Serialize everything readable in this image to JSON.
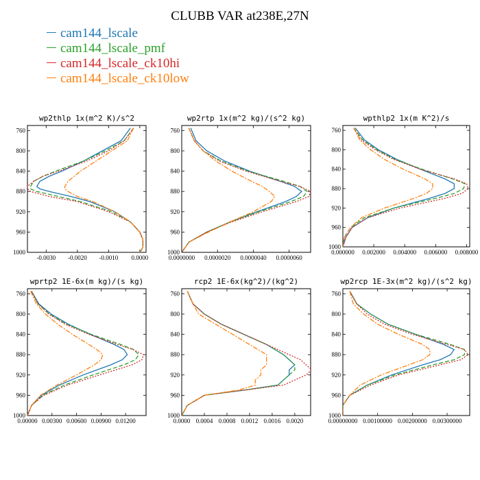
{
  "figure": {
    "title": "CLUBB VAR at238E,27N",
    "colors": {
      "cam144_lscale": "#1f77b4",
      "cam144_lscale_pmf": "#2ca02c",
      "cam144_lscale_ck10hi": "#d62728",
      "cam144_lscale_ck10low": "#ff7f0e"
    }
  },
  "legend": [
    {
      "label": "cam144_lscale",
      "color": "#1f77b4"
    },
    {
      "label": "cam144_lscale_pmf",
      "color": "#2ca02c"
    },
    {
      "label": "cam144_lscale_ck10hi",
      "color": "#d62728"
    },
    {
      "label": "cam144_lscale_ck10low",
      "color": "#ff7f0e"
    }
  ],
  "chart_data": [
    {
      "type": "line",
      "title": "wp2thlp  1x(m^2 K)/s^2",
      "ylim": [
        1000,
        750
      ],
      "yticks": [
        760,
        800,
        840,
        880,
        920,
        960,
        1000
      ],
      "xlim": [
        -0.0036,
        0.0002
      ],
      "xticks": [
        -0.003,
        -0.002,
        -0.001,
        0.0
      ],
      "xticklabels": [
        "-0.0030",
        "-0.0020",
        "-0.0010",
        "0.0000"
      ],
      "p": [
        755,
        780,
        800,
        820,
        840,
        850,
        860,
        870,
        875,
        880,
        890,
        900,
        920,
        940,
        960,
        975,
        990,
        1000
      ],
      "series": [
        {
          "name": "cam144_lscale",
          "values": [
            -0.0003,
            -0.0006,
            -0.0012,
            -0.0018,
            -0.0025,
            -0.0029,
            -0.0032,
            -0.0033,
            -0.0032,
            -0.0029,
            -0.0022,
            -0.0016,
            -0.0008,
            -0.0003,
            0.0,
            0.0001,
            0.0001,
            0.0
          ]
        },
        {
          "name": "cam144_lscale_pmf",
          "values": [
            -0.0002,
            -0.0005,
            -0.0011,
            -0.0018,
            -0.0027,
            -0.0031,
            -0.0034,
            -0.0035,
            -0.0035,
            -0.0033,
            -0.0026,
            -0.0019,
            -0.0009,
            -0.0003,
            0.0,
            0.0001,
            0.0001,
            0.0
          ]
        },
        {
          "name": "cam144_lscale_ck10hi",
          "values": [
            -0.0002,
            -0.0005,
            -0.001,
            -0.0017,
            -0.0026,
            -0.0031,
            -0.0034,
            -0.0036,
            -0.0036,
            -0.0035,
            -0.0029,
            -0.002,
            -0.001,
            -0.0003,
            0.0,
            0.0001,
            0.0001,
            0.0
          ]
        },
        {
          "name": "cam144_lscale_ck10low",
          "values": [
            -0.0002,
            -0.0004,
            -0.0009,
            -0.0014,
            -0.0019,
            -0.0021,
            -0.0023,
            -0.0024,
            -0.0024,
            -0.0023,
            -0.002,
            -0.0015,
            -0.0008,
            -0.0003,
            0.0,
            0.0001,
            0.0001,
            0.0
          ]
        }
      ]
    },
    {
      "type": "line",
      "title": "wp2rtp  1x(m^2 kg)/(s^2 kg)",
      "ylim": [
        1000,
        750
      ],
      "yticks": [
        760,
        800,
        840,
        880,
        920,
        960,
        1000
      ],
      "xlim": [
        0.0,
        7.2e-06
      ],
      "xticks": [
        0.0,
        2e-06,
        4e-06,
        6e-06
      ],
      "xticklabels": [
        "0.0000000",
        "0.0000020",
        "0.0000040",
        "0.0000060"
      ],
      "p": [
        755,
        780,
        800,
        820,
        840,
        860,
        870,
        880,
        890,
        900,
        920,
        940,
        960,
        980,
        1000
      ],
      "series": [
        {
          "name": "cam144_lscale",
          "values": [
            5e-07,
            8e-07,
            1.4e-06,
            2.4e-06,
            3.8e-06,
            5.5e-06,
            6.3e-06,
            6.7e-06,
            6.4e-06,
            5.8e-06,
            4.2e-06,
            2.7e-06,
            1.4e-06,
            4e-07,
            0.0
          ]
        },
        {
          "name": "cam144_lscale_pmf",
          "values": [
            4e-07,
            7e-07,
            1.2e-06,
            2.2e-06,
            3.7e-06,
            5.7e-06,
            6.6e-06,
            7e-06,
            6.8e-06,
            6.1e-06,
            4.3e-06,
            2.7e-06,
            1.4e-06,
            4e-07,
            0.0
          ]
        },
        {
          "name": "cam144_lscale_ck10hi",
          "values": [
            4e-07,
            7e-07,
            1.2e-06,
            2.1e-06,
            3.6e-06,
            5.5e-06,
            6.6e-06,
            7.2e-06,
            7.1e-06,
            6.4e-06,
            4.5e-06,
            2.8e-06,
            1.4e-06,
            4e-07,
            0.0
          ]
        },
        {
          "name": "cam144_lscale_ck10low",
          "values": [
            4e-07,
            7e-07,
            1.2e-06,
            1.9e-06,
            2.8e-06,
            3.9e-06,
            4.5e-06,
            4.9e-06,
            5.2e-06,
            5e-06,
            4e-06,
            2.7e-06,
            1.5e-06,
            4e-07,
            0.0
          ]
        }
      ]
    },
    {
      "type": "line",
      "title": "wpthlp2  1x(m K^2)/s",
      "ylim": [
        1000,
        750
      ],
      "yticks": [
        760,
        800,
        840,
        880,
        920,
        960,
        1000
      ],
      "xlim": [
        0.0,
        0.0082
      ],
      "xticks": [
        0.0,
        0.002,
        0.004,
        0.006,
        0.008
      ],
      "xticklabels": [
        "0.000000",
        "0.002000",
        "0.004000",
        "0.006000",
        "0.008000"
      ],
      "p": [
        755,
        780,
        800,
        820,
        840,
        860,
        870,
        880,
        890,
        900,
        920,
        940,
        960,
        980,
        1000
      ],
      "series": [
        {
          "name": "cam144_lscale",
          "values": [
            0.0008,
            0.0014,
            0.0023,
            0.0035,
            0.005,
            0.0066,
            0.0072,
            0.0072,
            0.0066,
            0.0056,
            0.0033,
            0.0016,
            0.0006,
            0.0002,
            0.0
          ]
        },
        {
          "name": "cam144_lscale_pmf",
          "values": [
            0.0007,
            0.0013,
            0.0022,
            0.0034,
            0.0051,
            0.0071,
            0.0079,
            0.0078,
            0.0072,
            0.006,
            0.0033,
            0.0014,
            0.0005,
            0.0001,
            0.0
          ]
        },
        {
          "name": "cam144_lscale_ck10hi",
          "values": [
            0.0007,
            0.0012,
            0.0021,
            0.0033,
            0.005,
            0.0072,
            0.008,
            0.0081,
            0.0077,
            0.0066,
            0.0037,
            0.0016,
            0.0006,
            0.0002,
            0.0
          ]
        },
        {
          "name": "cam144_lscale_ck10low",
          "values": [
            0.0007,
            0.0011,
            0.0018,
            0.0027,
            0.0039,
            0.0053,
            0.0058,
            0.0058,
            0.0054,
            0.0046,
            0.0027,
            0.0012,
            0.0005,
            0.0001,
            0.0
          ]
        }
      ]
    },
    {
      "type": "line",
      "title": "wprtp2  1E-6x(m kg)/(s kg)",
      "ylim": [
        1000,
        750
      ],
      "yticks": [
        760,
        800,
        840,
        880,
        920,
        960,
        1000
      ],
      "xlim": [
        0.0,
        0.0145
      ],
      "xticks": [
        0.0,
        0.003,
        0.006,
        0.009,
        0.012
      ],
      "xticklabels": [
        "0.00000",
        "0.00300",
        "0.00600",
        "0.00900",
        "0.01200"
      ],
      "p": [
        755,
        780,
        800,
        820,
        840,
        860,
        870,
        880,
        890,
        900,
        920,
        940,
        960,
        980,
        1000
      ],
      "series": [
        {
          "name": "cam144_lscale",
          "values": [
            0.0005,
            0.0014,
            0.0029,
            0.005,
            0.0077,
            0.0106,
            0.0118,
            0.0122,
            0.0116,
            0.0102,
            0.0068,
            0.0039,
            0.0017,
            0.0005,
            0.0
          ]
        },
        {
          "name": "cam144_lscale_pmf",
          "values": [
            0.0005,
            0.0013,
            0.0027,
            0.0048,
            0.0078,
            0.0114,
            0.013,
            0.0136,
            0.0132,
            0.0118,
            0.008,
            0.0045,
            0.0019,
            0.0005,
            0.0
          ]
        },
        {
          "name": "cam144_lscale_ck10hi",
          "values": [
            0.0005,
            0.0013,
            0.0026,
            0.0046,
            0.0075,
            0.011,
            0.0129,
            0.0142,
            0.014,
            0.0128,
            0.0088,
            0.0049,
            0.002,
            0.0005,
            0.0
          ]
        },
        {
          "name": "cam144_lscale_ck10low",
          "values": [
            0.0004,
            0.0011,
            0.0022,
            0.0037,
            0.0055,
            0.0075,
            0.0085,
            0.0092,
            0.009,
            0.0082,
            0.006,
            0.0036,
            0.0016,
            0.0005,
            0.0
          ]
        }
      ]
    },
    {
      "type": "line",
      "title": "rcp2  1E-6x(kg^2)/(kg^2)",
      "ylim": [
        1000,
        750
      ],
      "yticks": [
        760,
        800,
        840,
        880,
        920,
        960,
        1000
      ],
      "xlim": [
        0.0,
        0.00228
      ],
      "xticks": [
        0.0,
        0.0004,
        0.0008,
        0.0012,
        0.0016,
        0.002
      ],
      "xticklabels": [
        "0.0000",
        "0.0004",
        "0.0008",
        "0.0012",
        "0.0016",
        "0.0020"
      ],
      "p": [
        755,
        780,
        800,
        820,
        840,
        860,
        880,
        890,
        900,
        910,
        920,
        930,
        940,
        950,
        960,
        980,
        1000
      ],
      "series": [
        {
          "name": "cam144_lscale",
          "values": [
            0.0001,
            0.0002,
            0.0004,
            0.0007,
            0.0011,
            0.0015,
            0.0018,
            0.0019,
            0.002,
            0.0019,
            0.0019,
            0.0018,
            0.0017,
            0.0011,
            0.0004,
            0.0001,
            0.0
          ]
        },
        {
          "name": "cam144_lscale_pmf",
          "values": [
            0.0001,
            0.0002,
            0.0004,
            0.0007,
            0.0011,
            0.0015,
            0.0018,
            0.0019,
            0.002,
            0.002,
            0.0019,
            0.0018,
            0.0017,
            0.0011,
            0.0004,
            0.0001,
            0.0
          ]
        },
        {
          "name": "cam144_lscale_ck10hi",
          "values": [
            0.0001,
            0.0002,
            0.0004,
            0.0007,
            0.0011,
            0.0015,
            0.0019,
            0.0021,
            0.0022,
            0.0023,
            0.0022,
            0.002,
            0.0018,
            0.0011,
            0.0004,
            0.0001,
            0.0
          ]
        },
        {
          "name": "cam144_lscale_ck10low",
          "values": [
            0.0001,
            0.0002,
            0.0003,
            0.0006,
            0.0009,
            0.0012,
            0.0015,
            0.0015,
            0.0015,
            0.0014,
            0.0014,
            0.0013,
            0.0013,
            0.001,
            0.0004,
            0.0001,
            0.0
          ]
        }
      ]
    },
    {
      "type": "line",
      "title": "wp2rcp  1E-3x(m^2 kg)/(s^2 kg)",
      "ylim": [
        1000,
        750
      ],
      "yticks": [
        760,
        800,
        840,
        880,
        920,
        960,
        1000
      ],
      "xlim": [
        0.0,
        0.00365
      ],
      "xticks": [
        0.0,
        0.001,
        0.002,
        0.003
      ],
      "xticklabels": [
        "0.00000000",
        "0.00100000",
        "0.00200000",
        "0.00300000"
      ],
      "p": [
        755,
        780,
        800,
        820,
        840,
        860,
        870,
        880,
        890,
        900,
        920,
        940,
        960,
        980,
        1000
      ],
      "series": [
        {
          "name": "cam144_lscale",
          "values": [
            0.0002,
            0.0004,
            0.0008,
            0.0013,
            0.0021,
            0.0029,
            0.0032,
            0.0031,
            0.0028,
            0.0023,
            0.0014,
            0.0007,
            0.0002,
            0.0,
            0.0
          ]
        },
        {
          "name": "cam144_lscale_pmf",
          "values": [
            0.0002,
            0.0004,
            0.0008,
            0.0013,
            0.0021,
            0.0031,
            0.0035,
            0.0035,
            0.0032,
            0.0026,
            0.0015,
            0.0007,
            0.0002,
            0.0,
            0.0
          ]
        },
        {
          "name": "cam144_lscale_ck10hi",
          "values": [
            0.0002,
            0.0004,
            0.0007,
            0.0012,
            0.002,
            0.003,
            0.0035,
            0.0036,
            0.0034,
            0.0028,
            0.0016,
            0.0008,
            0.0002,
            0.0,
            0.0
          ]
        },
        {
          "name": "cam144_lscale_ck10low",
          "values": [
            0.0002,
            0.0003,
            0.0006,
            0.001,
            0.0016,
            0.0023,
            0.0025,
            0.0025,
            0.0023,
            0.0019,
            0.0011,
            0.0005,
            0.0002,
            0.0,
            0.0
          ]
        }
      ]
    }
  ]
}
